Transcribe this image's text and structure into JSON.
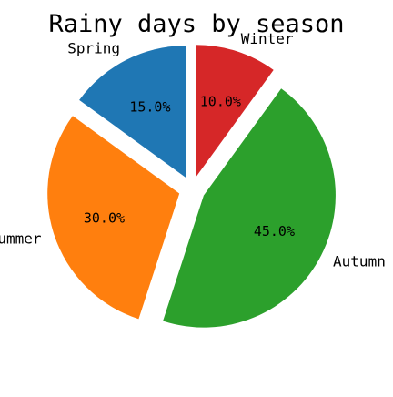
{
  "chart_data": {
    "type": "pie",
    "title": "Rainy days by season",
    "categories": [
      "Spring",
      "Summer",
      "Autumn",
      "Winter"
    ],
    "values": [
      15.0,
      30.0,
      45.0,
      10.0
    ],
    "value_labels": [
      "15.0%",
      "30.0%",
      "45.0%",
      "10.0%"
    ],
    "colors": [
      "#1f77b4",
      "#ff7f0e",
      "#2ca02c",
      "#d62728"
    ],
    "start_angle_deg": 90,
    "direction": "counterclockwise",
    "exploded": true,
    "legend": "none"
  }
}
